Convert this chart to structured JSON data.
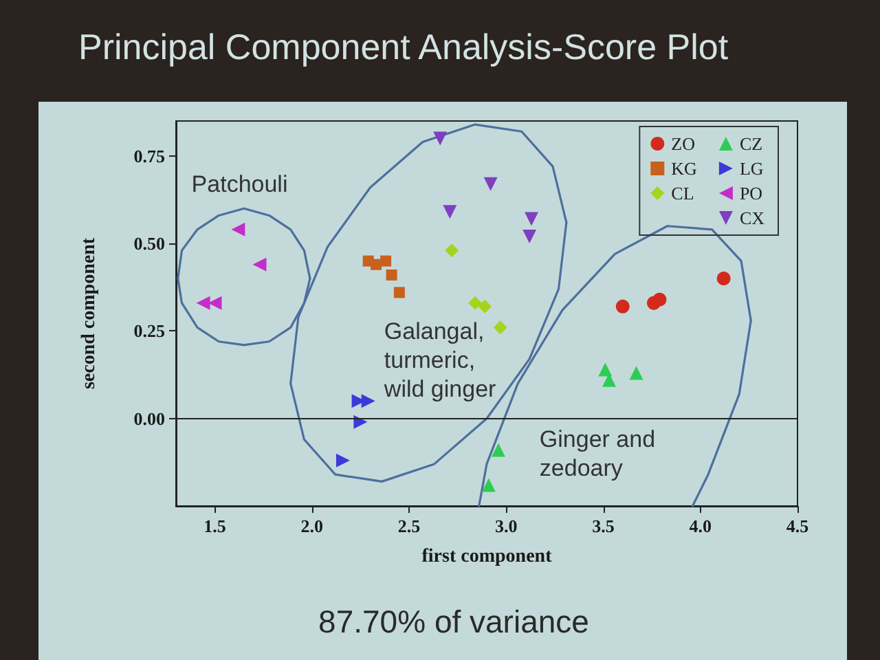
{
  "chart_data": {
    "type": "scatter",
    "title": "Principal Component Analysis-Score Plot",
    "xlabel": "first component",
    "ylabel": "second component",
    "xlim": [
      1.3,
      4.5
    ],
    "ylim": [
      -0.25,
      0.85
    ],
    "xticks": [
      1.5,
      {
        "value": 2,
        "label": "2.0"
      },
      2.5,
      {
        "value": 3,
        "label": "3.0"
      },
      3.5,
      {
        "value": 4,
        "label": "4.0"
      },
      4.5
    ],
    "yticks": [
      {
        "value": 0,
        "label": "0.00"
      },
      0.25,
      {
        "value": 0.5,
        "label": "0.50"
      },
      0.75
    ],
    "legend": "top right",
    "series": [
      {
        "name": "ZO",
        "color": "#d42a1e",
        "marker": "circle",
        "x": [
          3.6,
          3.76,
          3.79,
          4.12
        ],
        "values": [
          0.32,
          0.33,
          0.34,
          0.4
        ]
      },
      {
        "name": "KG",
        "color": "#c8601e",
        "marker": "square",
        "x": [
          2.29,
          2.33,
          2.38,
          2.41,
          2.45
        ],
        "values": [
          0.45,
          0.44,
          0.45,
          0.41,
          0.36
        ]
      },
      {
        "name": "CL",
        "color": "#a6d41e",
        "marker": "diamond",
        "x": [
          2.72,
          2.84,
          2.89,
          2.97
        ],
        "values": [
          0.48,
          0.33,
          0.32,
          0.26
        ]
      },
      {
        "name": "CZ",
        "color": "#2ecc55",
        "marker": "triangle",
        "x": [
          3.51,
          3.53,
          3.67,
          2.96,
          2.91
        ],
        "values": [
          0.14,
          0.11,
          0.13,
          -0.09,
          -0.19
        ]
      },
      {
        "name": "LG",
        "color": "#3a3ad8",
        "marker": "triangle",
        "x": [
          2.24,
          2.29,
          2.25,
          2.16
        ],
        "values": [
          0.05,
          0.05,
          -0.01,
          -0.12
        ]
      },
      {
        "name": "PO",
        "color": "#c42ec8",
        "marker": "triangle",
        "x": [
          1.62,
          1.73,
          1.44,
          1.5
        ],
        "values": [
          0.54,
          0.44,
          0.33,
          0.33
        ]
      },
      {
        "name": "CX",
        "color": "#7f3fc0",
        "marker": "triangle",
        "x": [
          2.66,
          2.71,
          2.92,
          3.13,
          3.12
        ],
        "values": [
          0.8,
          0.59,
          0.67,
          0.57,
          0.52
        ]
      },
      {
        "type": "line",
        "color": "#4d6f9e",
        "marker": "none",
        "x": [
          1.31,
          1.33,
          1.41,
          1.52,
          1.65,
          1.78,
          1.89,
          1.96,
          1.99
        ],
        "values": [
          0.4,
          0.48,
          0.54,
          0.58,
          0.6,
          0.58,
          0.54,
          0.48,
          0.4
        ]
      },
      {
        "type": "line",
        "color": "#4d6f9e",
        "marker": "none",
        "x": [
          1.31,
          1.33,
          1.41,
          1.52,
          1.65,
          1.78,
          1.89,
          1.96,
          1.99
        ],
        "values": [
          0.4,
          0.33,
          0.26,
          0.22,
          0.21,
          0.22,
          0.26,
          0.33,
          0.4
        ]
      },
      {
        "type": "line",
        "color": "#4d6f9e",
        "marker": "none",
        "x": [
          1.89,
          1.93,
          2.08,
          2.3,
          2.57,
          2.84,
          3.08,
          3.24,
          3.31
        ],
        "values": [
          0.1,
          0.29,
          0.49,
          0.66,
          0.79,
          0.84,
          0.82,
          0.72,
          0.56
        ]
      },
      {
        "type": "line",
        "color": "#4d6f9e",
        "marker": "none",
        "x": [
          1.89,
          1.96,
          2.12,
          2.36,
          2.63,
          2.9,
          3.12,
          3.27,
          3.31
        ],
        "values": [
          0.1,
          -0.06,
          -0.16,
          -0.18,
          -0.13,
          0.0,
          0.17,
          0.37,
          0.56
        ]
      },
      {
        "type": "line",
        "color": "#4d6f9e",
        "marker": "none",
        "x": [
          2.86,
          2.9,
          3.06,
          3.29,
          3.56,
          3.83,
          4.06,
          4.21,
          4.26
        ],
        "values": [
          -0.25,
          -0.13,
          0.1,
          0.31,
          0.47,
          0.55,
          0.54,
          0.45,
          0.28
        ]
      },
      {
        "type": "line",
        "color": "#4d6f9e",
        "marker": "none",
        "x": [
          3.96,
          4.04,
          4.2,
          4.26
        ],
        "values": [
          -0.25,
          -0.16,
          0.07,
          0.28
        ]
      }
    ],
    "ref_lines": [
      {
        "axis": "y",
        "value": 0
      }
    ],
    "annotations": [
      "Patchouli",
      "Galangal, turmeric, wild ginger",
      "Ginger and zedoary",
      "87.70% of variance"
    ]
  }
}
